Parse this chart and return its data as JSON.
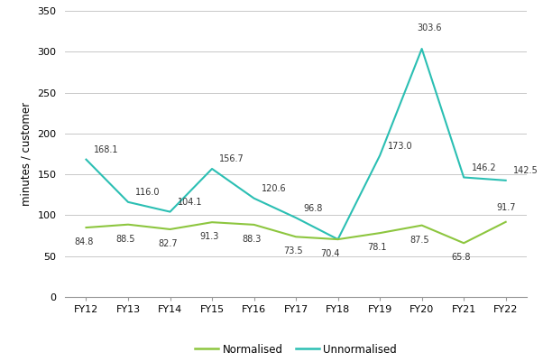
{
  "categories": [
    "FY12",
    "FY13",
    "FY14",
    "FY15",
    "FY16",
    "FY17",
    "FY18",
    "FY19",
    "FY20",
    "FY21",
    "FY22"
  ],
  "normalised": [
    84.8,
    88.5,
    82.7,
    91.3,
    88.3,
    73.5,
    70.4,
    78.1,
    87.5,
    65.8,
    91.7
  ],
  "unnormalised": [
    168.1,
    116.0,
    104.1,
    156.7,
    120.6,
    96.8,
    70.4,
    173.0,
    303.6,
    146.2,
    142.5
  ],
  "normalised_labels": [
    "84.8",
    "88.5",
    "82.7",
    "91.3",
    "88.3",
    "73.5",
    "70.4",
    "78.1",
    "87.5",
    "65.8",
    "91.7"
  ],
  "unnormalised_labels": [
    "168.1",
    "116.0",
    "104.1",
    "156.7",
    "120.6",
    "96.8",
    "",
    "173.0",
    "303.6",
    "146.2",
    "142.5"
  ],
  "normalised_color": "#8DC63F",
  "unnormalised_color": "#2BBFB3",
  "ylabel": "minutes / customer",
  "ylim": [
    0,
    350
  ],
  "yticks": [
    0,
    50,
    100,
    150,
    200,
    250,
    300,
    350
  ],
  "bg_color": "#ffffff",
  "grid_color": "#c8c8c8",
  "legend_normalised": "Normalised",
  "legend_unnormalised": "Unnormalised",
  "label_fontsize": 7.0,
  "axis_fontsize": 8.5,
  "tick_fontsize": 8.0,
  "unnorm_label_offsets_x": [
    6,
    6,
    6,
    6,
    6,
    6,
    0,
    6,
    6,
    6,
    6
  ],
  "unnorm_label_offsets_y": [
    0,
    0,
    0,
    0,
    0,
    0,
    0,
    0,
    8,
    0,
    0
  ],
  "norm_label_offsets_x": [
    -2,
    -2,
    -2,
    -2,
    -2,
    -2,
    -6,
    -2,
    -2,
    -2,
    0
  ],
  "norm_label_offsets_y": [
    -8,
    -8,
    -8,
    -8,
    -8,
    -8,
    -8,
    -8,
    -8,
    -8,
    8
  ]
}
